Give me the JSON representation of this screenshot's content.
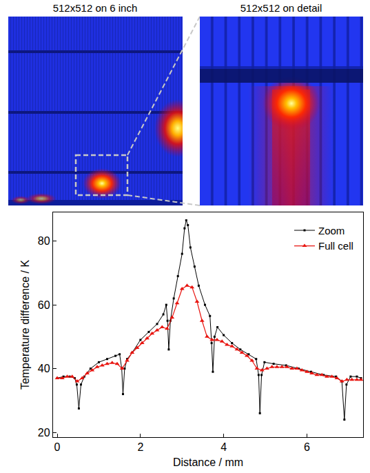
{
  "panel_titles": [
    "512x512 on 6 inch",
    "512x512 on detail"
  ],
  "chart_data": {
    "type": "line",
    "x_label": "Distance / mm",
    "y_label": "Temperature difference / K",
    "xlim": [
      -0.1,
      7.35
    ],
    "xticks": [
      0,
      2,
      4,
      6
    ],
    "ylim": [
      18.5,
      89
    ],
    "yticks": [
      20,
      40,
      60,
      80
    ],
    "grid": false,
    "legend": "top-right",
    "series": [
      {
        "name": "Zoom",
        "color": "#000000",
        "marker": "square",
        "line_style": "solid",
        "x": [
          0,
          0.15,
          0.3,
          0.42,
          0.47,
          0.52,
          0.57,
          0.65,
          0.8,
          1.0,
          1.2,
          1.4,
          1.5,
          1.55,
          1.58,
          1.62,
          1.68,
          1.8,
          2.0,
          2.2,
          2.4,
          2.55,
          2.62,
          2.65,
          2.68,
          2.72,
          2.8,
          2.9,
          3.0,
          3.06,
          3.1,
          3.14,
          3.2,
          3.3,
          3.4,
          3.55,
          3.67,
          3.71,
          3.74,
          3.78,
          3.85,
          4.0,
          4.2,
          4.4,
          4.6,
          4.78,
          4.84,
          4.87,
          4.91,
          4.98,
          5.2,
          5.5,
          5.8,
          6.1,
          6.4,
          6.7,
          6.84,
          6.9,
          6.95,
          7.05,
          7.2,
          7.3
        ],
        "values": [
          37,
          37.5,
          37.5,
          37,
          35,
          27.5,
          35,
          37.5,
          40,
          42,
          43,
          44,
          44.5,
          40,
          32,
          40,
          43,
          45,
          49,
          51.5,
          54,
          57,
          60,
          55,
          46,
          55,
          62,
          69,
          76,
          84,
          86.5,
          85,
          78,
          72,
          66,
          60,
          56.5,
          48,
          39,
          50,
          53,
          50.5,
          48,
          46,
          44.5,
          43,
          38,
          26,
          38,
          42,
          41.5,
          41,
          40,
          39,
          38,
          37.5,
          36,
          24,
          35,
          37.5,
          37.5,
          37
        ]
      },
      {
        "name": "Full cell",
        "color": "#e8140f",
        "marker": "triangle-up",
        "line_style": "solid",
        "x": [
          0,
          0.12,
          0.24,
          0.36,
          0.48,
          0.6,
          0.72,
          0.84,
          0.96,
          1.08,
          1.2,
          1.32,
          1.44,
          1.56,
          1.68,
          1.8,
          1.92,
          2.04,
          2.16,
          2.28,
          2.4,
          2.52,
          2.64,
          2.76,
          2.88,
          3.0,
          3.12,
          3.24,
          3.36,
          3.48,
          3.6,
          3.72,
          3.84,
          3.96,
          4.08,
          4.2,
          4.32,
          4.44,
          4.56,
          4.68,
          4.8,
          4.92,
          5.04,
          5.16,
          5.28,
          5.4,
          5.52,
          5.64,
          5.76,
          5.88,
          6.0,
          6.12,
          6.24,
          6.36,
          6.48,
          6.6,
          6.72,
          6.84,
          6.96,
          7.08,
          7.2,
          7.3
        ],
        "values": [
          37,
          37,
          37.5,
          37.5,
          36,
          37,
          38.5,
          39.5,
          40.5,
          41,
          41.5,
          41.8,
          41.5,
          40,
          42.5,
          45,
          46.5,
          48,
          49.5,
          51,
          52,
          53,
          52.5,
          56,
          60.5,
          65,
          66,
          65.5,
          61,
          55,
          50,
          49,
          49,
          48.5,
          47.5,
          47,
          46,
          45,
          44,
          42.5,
          40,
          39.5,
          40,
          40.5,
          40.5,
          40.5,
          40.5,
          40,
          40,
          39.5,
          39,
          38.5,
          38,
          38,
          37.5,
          37.5,
          37,
          36,
          36.5,
          36.5,
          36.5,
          36.5
        ]
      }
    ]
  }
}
